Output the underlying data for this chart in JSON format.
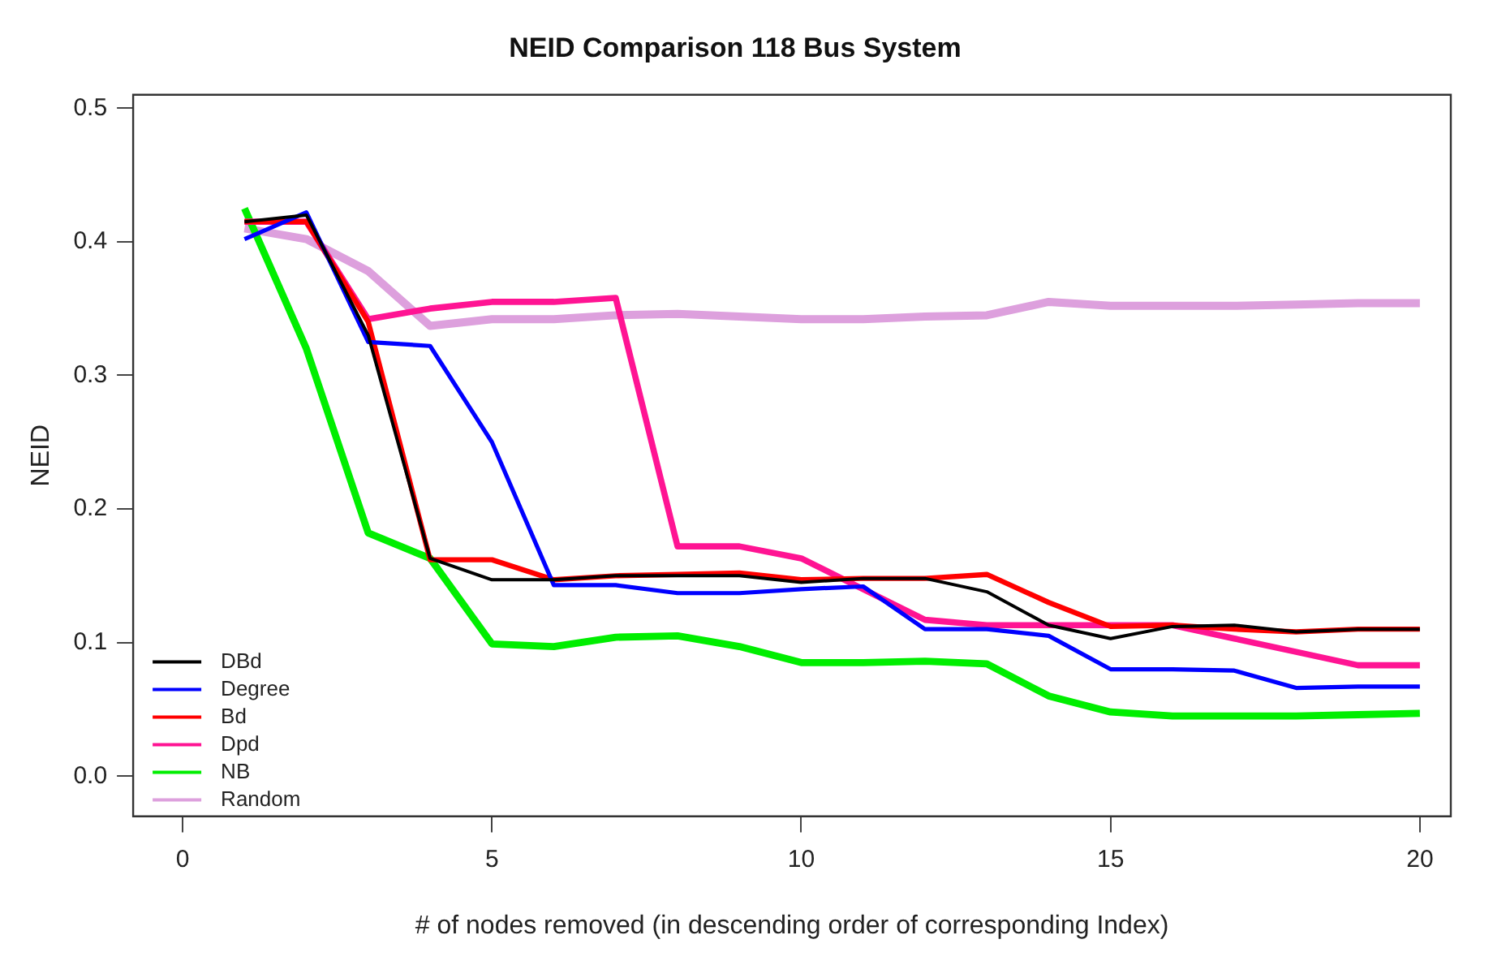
{
  "chart_data": {
    "type": "line",
    "title": "NEID Comparison 118 Bus System",
    "xlabel": "# of nodes removed (in descending order of corresponding Index)",
    "ylabel": "NEID",
    "x": [
      1,
      2,
      3,
      4,
      5,
      6,
      7,
      8,
      9,
      10,
      11,
      12,
      13,
      14,
      15,
      16,
      17,
      18,
      19,
      20
    ],
    "series": [
      {
        "name": "DBd",
        "color": "#000000",
        "values": [
          0.415,
          0.42,
          0.33,
          0.163,
          0.147,
          0.147,
          0.15,
          0.15,
          0.15,
          0.145,
          0.148,
          0.148,
          0.138,
          0.113,
          0.103,
          0.112,
          0.113,
          0.108,
          0.11,
          0.11
        ]
      },
      {
        "name": "Degree",
        "color": "#0000ff",
        "values": [
          0.402,
          0.422,
          0.325,
          0.322,
          0.25,
          0.143,
          0.143,
          0.137,
          0.137,
          0.14,
          0.142,
          0.11,
          0.11,
          0.105,
          0.08,
          0.08,
          0.079,
          0.066,
          0.067,
          0.067
        ]
      },
      {
        "name": "Bd",
        "color": "#ff0000",
        "values": [
          0.415,
          0.415,
          0.34,
          0.162,
          0.162,
          0.147,
          0.15,
          0.151,
          0.152,
          0.147,
          0.148,
          0.148,
          0.151,
          0.13,
          0.112,
          0.113,
          0.11,
          0.108,
          0.11,
          0.11
        ]
      },
      {
        "name": "Dpd",
        "color": "#ff1493",
        "values": [
          0.415,
          0.415,
          0.342,
          0.35,
          0.355,
          0.355,
          0.358,
          0.172,
          0.172,
          0.163,
          0.14,
          0.117,
          0.113,
          0.113,
          0.113,
          0.113,
          0.103,
          0.093,
          0.083,
          0.083
        ]
      },
      {
        "name": "NB",
        "color": "#00ee00",
        "values": [
          0.425,
          0.32,
          0.182,
          0.163,
          0.099,
          0.097,
          0.104,
          0.105,
          0.097,
          0.085,
          0.085,
          0.086,
          0.084,
          0.06,
          0.048,
          0.045,
          0.045,
          0.045,
          0.046,
          0.047
        ]
      },
      {
        "name": "Random",
        "color": "#dda0dd",
        "values": [
          0.41,
          0.402,
          0.378,
          0.337,
          0.342,
          0.342,
          0.345,
          0.346,
          0.344,
          0.342,
          0.342,
          0.344,
          0.345,
          0.355,
          0.352,
          0.352,
          0.352,
          0.353,
          0.354,
          0.354
        ]
      }
    ],
    "xlim": [
      -0.8,
      20.5
    ],
    "ylim": [
      -0.03,
      0.51
    ],
    "xticks": [
      0,
      5,
      10,
      15,
      20
    ],
    "yticks": [
      {
        "value": 0,
        "label": "0.0"
      },
      {
        "value": 0.1,
        "label": "0.1"
      },
      {
        "value": 0.2,
        "label": "0.2"
      },
      {
        "value": 0.3,
        "label": "0.3"
      },
      {
        "value": 0.4,
        "label": "0.4"
      },
      {
        "value": 0.5,
        "label": "0.5"
      }
    ],
    "grid": false,
    "legend": "bottom left",
    "marker": "none",
    "line_style": "solid"
  }
}
